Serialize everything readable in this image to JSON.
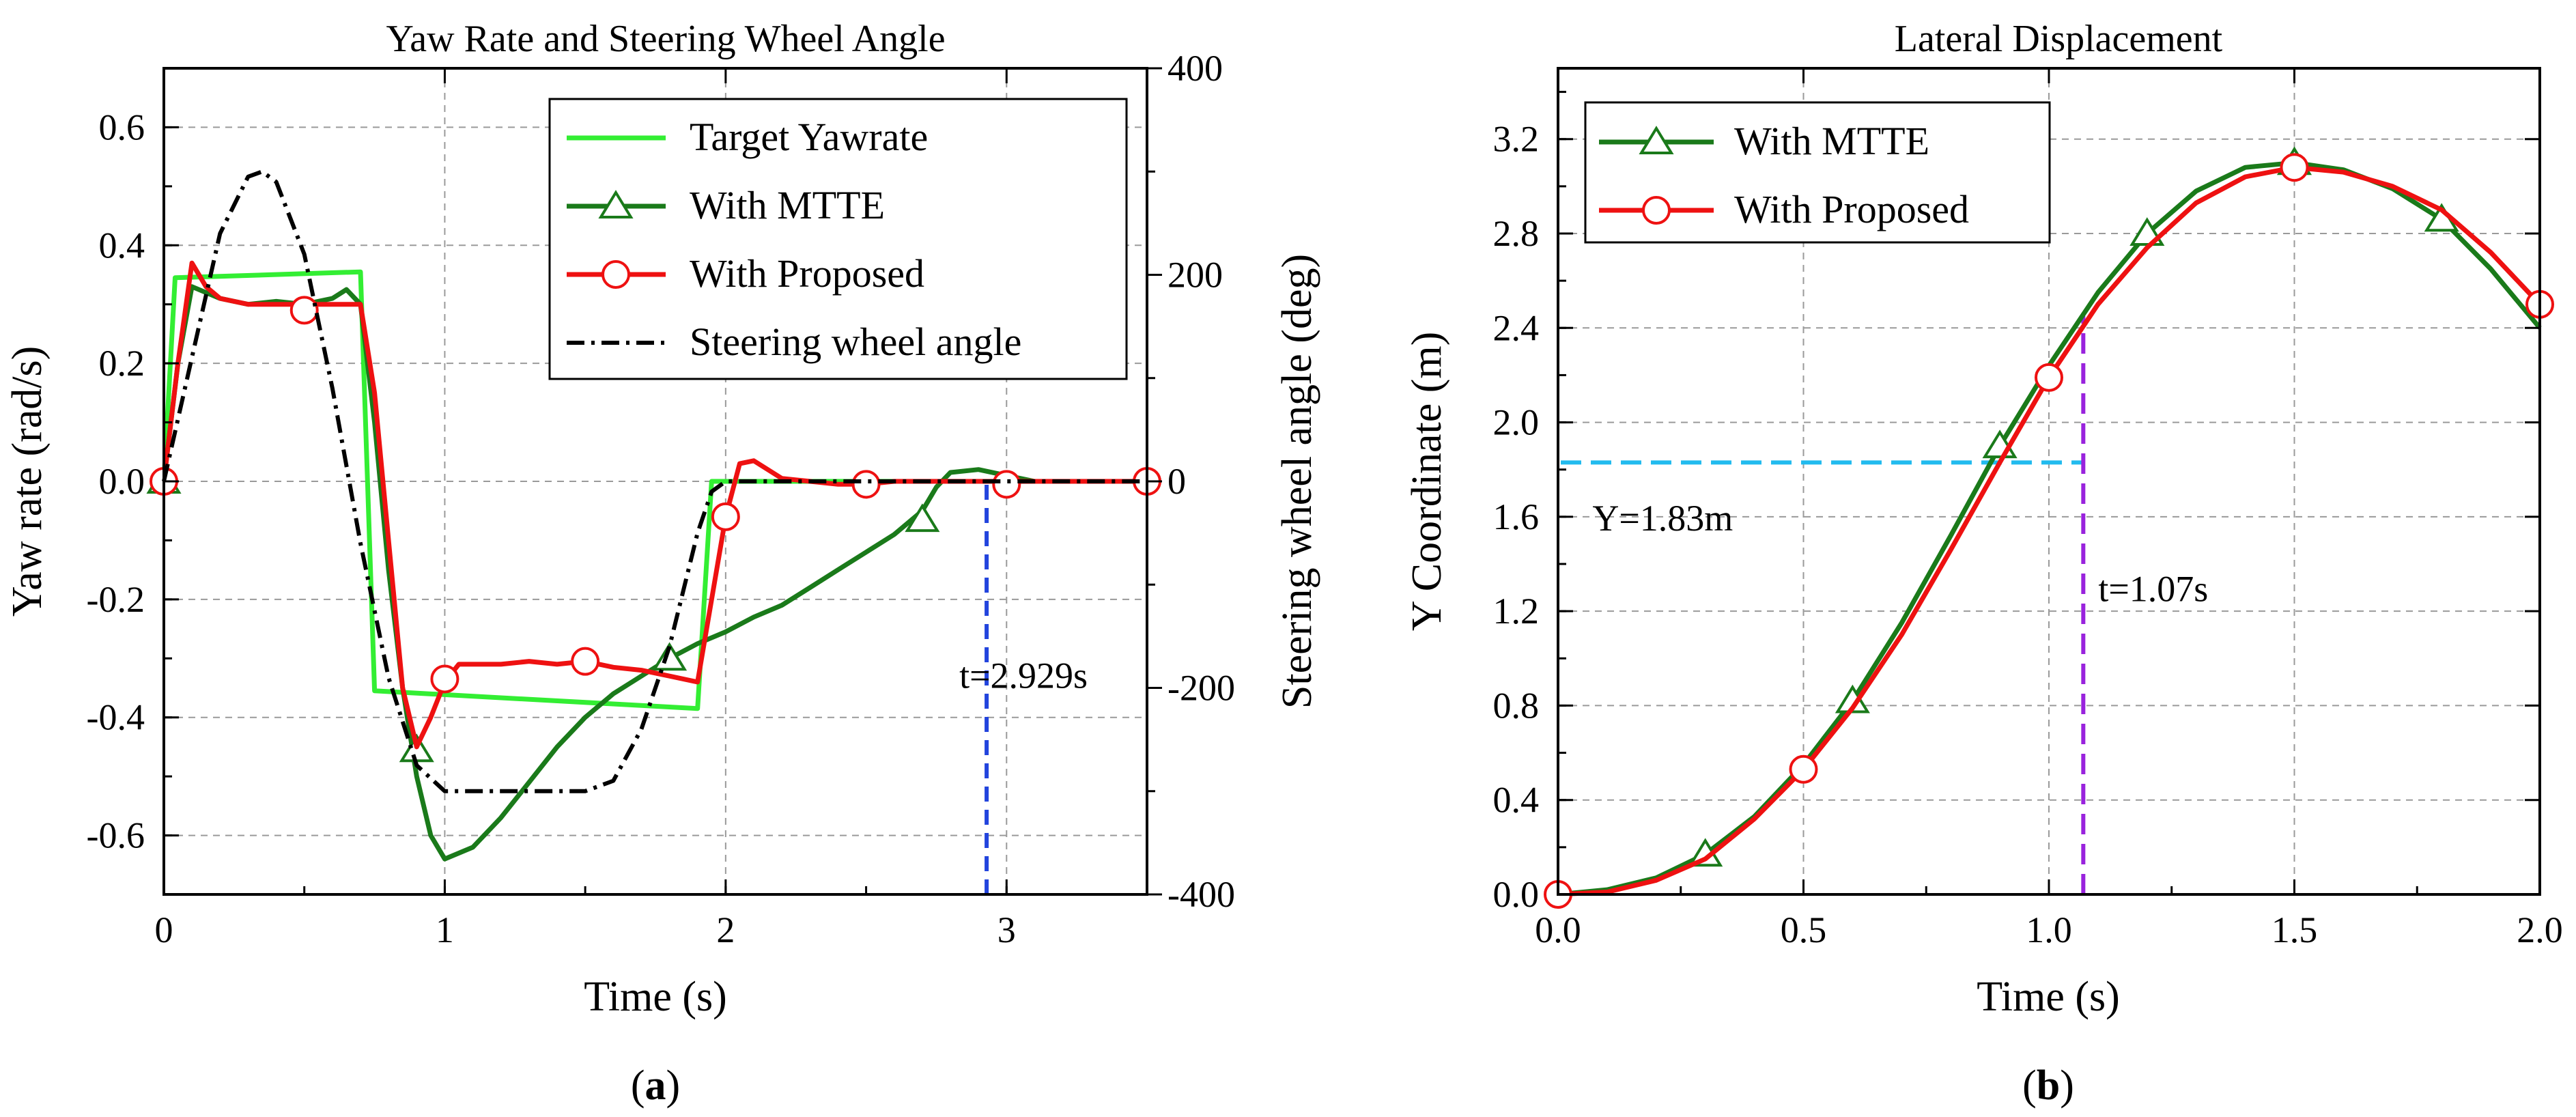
{
  "chart_data": [
    {
      "type": "line",
      "title": "Yaw Rate and Steering Wheel Angle",
      "xlabel": "Time (s)",
      "ylabel": "Yaw rate (rad/s)",
      "y2label": "Steering wheel angle (deg)",
      "xlim": [
        0,
        3.5
      ],
      "ylim": [
        -0.7,
        0.7
      ],
      "y2lim": [
        -400,
        400
      ],
      "xticks": [
        0,
        1,
        2,
        3
      ],
      "yticks": [
        -0.6,
        -0.4,
        -0.2,
        0.0,
        0.2,
        0.4,
        0.6
      ],
      "y2ticks": [
        -400,
        -200,
        0,
        200,
        400
      ],
      "xtick_labels": [
        "0",
        "1",
        "2",
        "3"
      ],
      "ytick_labels": [
        "-0.6",
        "-0.4",
        "-0.2",
        "0.0",
        "0.2",
        "0.4",
        "0.6"
      ],
      "y2tick_labels": [
        "-400",
        "-200",
        "0",
        "200",
        "400"
      ],
      "grid": true,
      "legend_position": "top-right",
      "caption": "a",
      "series": [
        {
          "name": "Target Yawrate",
          "color": "#33ee33",
          "marker": "none",
          "axis": "left",
          "x": [
            0.0,
            0.04,
            0.7,
            0.75,
            1.9,
            1.95,
            3.5
          ],
          "y": [
            0.0,
            0.345,
            0.355,
            -0.355,
            -0.385,
            0.0,
            0.0
          ]
        },
        {
          "name": "With MTTE",
          "color": "#1a7a1a",
          "marker": "triangle",
          "axis": "left",
          "x": [
            0.0,
            0.05,
            0.1,
            0.2,
            0.3,
            0.4,
            0.5,
            0.6,
            0.65,
            0.7,
            0.75,
            0.8,
            0.85,
            0.9,
            0.95,
            1.0,
            1.1,
            1.2,
            1.3,
            1.4,
            1.5,
            1.6,
            1.7,
            1.8,
            1.9,
            2.0,
            2.1,
            2.2,
            2.3,
            2.4,
            2.5,
            2.6,
            2.7,
            2.75,
            2.8,
            2.9,
            3.0,
            3.1,
            3.2,
            3.3,
            3.4,
            3.5
          ],
          "y": [
            0.0,
            0.2,
            0.33,
            0.31,
            0.3,
            0.305,
            0.3,
            0.31,
            0.325,
            0.3,
            0.1,
            -0.15,
            -0.35,
            -0.5,
            -0.6,
            -0.64,
            -0.62,
            -0.57,
            -0.51,
            -0.45,
            -0.4,
            -0.36,
            -0.33,
            -0.3,
            -0.275,
            -0.255,
            -0.23,
            -0.21,
            -0.18,
            -0.15,
            -0.12,
            -0.09,
            -0.05,
            -0.01,
            0.015,
            0.02,
            0.01,
            0.0,
            0.0,
            0.0,
            0.0,
            0.0
          ],
          "markers_x": [
            0.0,
            0.9,
            1.8,
            2.7
          ],
          "markers_y": [
            0.0,
            -0.455,
            -0.3,
            -0.065
          ]
        },
        {
          "name": "With Proposed",
          "color": "#ee1111",
          "marker": "circle",
          "axis": "left",
          "x": [
            0.0,
            0.05,
            0.1,
            0.15,
            0.2,
            0.3,
            0.4,
            0.5,
            0.6,
            0.7,
            0.75,
            0.8,
            0.85,
            0.9,
            0.95,
            1.0,
            1.05,
            1.1,
            1.2,
            1.3,
            1.4,
            1.5,
            1.6,
            1.7,
            1.8,
            1.9,
            1.95,
            2.0,
            2.05,
            2.1,
            2.2,
            2.3,
            2.4,
            2.5,
            2.6,
            2.8,
            3.0,
            3.2,
            3.5
          ],
          "y": [
            0.0,
            0.2,
            0.37,
            0.33,
            0.31,
            0.3,
            0.3,
            0.3,
            0.3,
            0.3,
            0.15,
            -0.1,
            -0.35,
            -0.45,
            -0.4,
            -0.34,
            -0.31,
            -0.31,
            -0.31,
            -0.305,
            -0.31,
            -0.305,
            -0.315,
            -0.32,
            -0.33,
            -0.34,
            -0.2,
            -0.06,
            0.03,
            0.035,
            0.005,
            0.0,
            -0.005,
            -0.005,
            0.0,
            0.0,
            0.0,
            0.0,
            0.0
          ],
          "markers_x": [
            0.0,
            0.5,
            1.0,
            1.5,
            2.0,
            2.5,
            3.0,
            3.5
          ],
          "markers_y": [
            0.0,
            0.29,
            -0.335,
            -0.305,
            -0.06,
            -0.005,
            -0.005,
            0.0
          ]
        },
        {
          "name": "Steering wheel angle",
          "color": "#000000",
          "marker": "none",
          "dash": "dashdot",
          "axis": "right",
          "x": [
            0.0,
            0.1,
            0.2,
            0.3,
            0.35,
            0.4,
            0.5,
            0.6,
            0.7,
            0.8,
            0.9,
            1.0,
            1.1,
            1.2,
            1.3,
            1.4,
            1.5,
            1.6,
            1.7,
            1.8,
            1.9,
            1.95,
            2.0,
            2.5,
            3.0,
            3.5
          ],
          "y": [
            0,
            120,
            240,
            295,
            300,
            290,
            220,
            90,
            -60,
            -190,
            -275,
            -300,
            -300,
            -300,
            -300,
            -300,
            -300,
            -290,
            -240,
            -160,
            -50,
            -10,
            0,
            0,
            0,
            0
          ]
        }
      ],
      "annotations": [
        {
          "text": "t=2.929s",
          "x": 2.929,
          "color": "#2244dd",
          "from_y": -0.7,
          "to_y": 0.0
        }
      ]
    },
    {
      "type": "line",
      "title": "Lateral Displacement",
      "xlabel": "Time (s)",
      "ylabel": "Y Coordinate (m)",
      "xlim": [
        0.0,
        2.0
      ],
      "ylim": [
        0.0,
        3.5
      ],
      "xticks": [
        0.0,
        0.5,
        1.0,
        1.5,
        2.0
      ],
      "yticks": [
        0.0,
        0.4,
        0.8,
        1.2,
        1.6,
        2.0,
        2.4,
        2.8,
        3.2
      ],
      "xtick_labels": [
        "0.0",
        "0.5",
        "1.0",
        "1.5",
        "2.0"
      ],
      "ytick_labels": [
        "0.0",
        "0.4",
        "0.8",
        "1.2",
        "1.6",
        "2.0",
        "2.4",
        "2.8",
        "3.2"
      ],
      "grid": true,
      "legend_position": "top-left",
      "caption": "b",
      "series": [
        {
          "name": "With MTTE",
          "color": "#1a7a1a",
          "marker": "triangle",
          "x": [
            0.0,
            0.1,
            0.2,
            0.3,
            0.4,
            0.5,
            0.6,
            0.7,
            0.8,
            0.9,
            1.0,
            1.1,
            1.2,
            1.3,
            1.4,
            1.5,
            1.6,
            1.7,
            1.8,
            1.9,
            2.0
          ],
          "y": [
            0.0,
            0.02,
            0.07,
            0.17,
            0.33,
            0.55,
            0.82,
            1.15,
            1.52,
            1.9,
            2.24,
            2.55,
            2.8,
            2.98,
            3.08,
            3.1,
            3.07,
            2.99,
            2.86,
            2.65,
            2.4
          ],
          "markers_x": [
            0.3,
            0.6,
            0.9,
            1.2,
            1.5,
            1.8
          ],
          "markers_y": [
            0.17,
            0.82,
            1.9,
            2.8,
            3.1,
            2.86
          ]
        },
        {
          "name": "With Proposed",
          "color": "#ee1111",
          "marker": "circle",
          "x": [
            0.0,
            0.1,
            0.2,
            0.3,
            0.4,
            0.5,
            0.6,
            0.7,
            0.8,
            0.9,
            1.0,
            1.1,
            1.2,
            1.3,
            1.4,
            1.5,
            1.6,
            1.7,
            1.8,
            1.9,
            2.0
          ],
          "y": [
            0.0,
            0.01,
            0.06,
            0.15,
            0.32,
            0.53,
            0.79,
            1.1,
            1.46,
            1.83,
            2.19,
            2.5,
            2.74,
            2.93,
            3.04,
            3.08,
            3.06,
            3.0,
            2.9,
            2.72,
            2.5
          ],
          "markers_x": [
            0.0,
            0.5,
            1.0,
            1.5,
            2.0
          ],
          "markers_y": [
            0.0,
            0.53,
            2.19,
            3.08,
            2.5
          ]
        }
      ],
      "annotations": [
        {
          "text": "Y=1.83m",
          "kind": "hline",
          "y": 1.83,
          "from_x": 0.0,
          "to_x": 1.07,
          "color": "#22bbee"
        },
        {
          "text": "t=1.07s",
          "kind": "vline",
          "x": 1.07,
          "from_y": 0.0,
          "to_y": 2.45,
          "color": "#9922dd"
        }
      ]
    }
  ]
}
